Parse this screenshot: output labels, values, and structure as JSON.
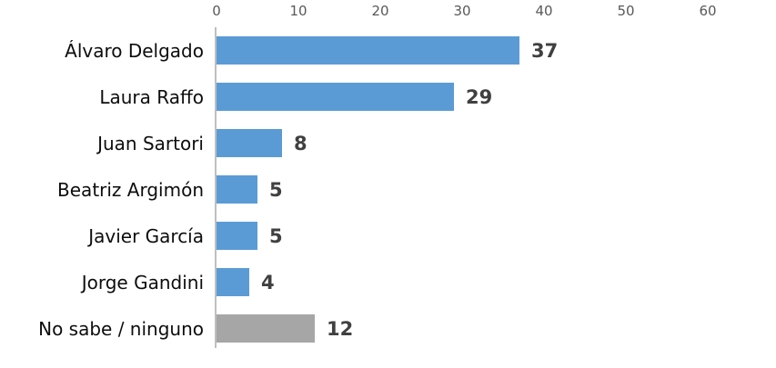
{
  "chart_data": {
    "type": "bar",
    "orientation": "horizontal",
    "title": "",
    "xlabel": "",
    "ylabel": "",
    "categories": [
      "Álvaro Delgado",
      "Laura Raffo",
      "Juan Sartori",
      "Beatriz Argimón",
      "Javier García",
      "Jorge Gandini",
      "No sabe / ninguno"
    ],
    "values": [
      37,
      29,
      8,
      5,
      5,
      4,
      12
    ],
    "bar_colors": [
      "#5b9bd5",
      "#5b9bd5",
      "#5b9bd5",
      "#5b9bd5",
      "#5b9bd5",
      "#5b9bd5",
      "#a6a6a6"
    ],
    "x_ticks": [
      0,
      10,
      20,
      30,
      40,
      50,
      60
    ],
    "xlim": [
      0,
      60
    ],
    "grid": false,
    "legend": false,
    "data_labels": true,
    "colors": {
      "bar_blue": "#5b9bd5",
      "bar_gray": "#a6a6a6",
      "value_label": "#404040",
      "tick_label": "#595959",
      "axis_line": "#bfbfbf",
      "category_label": "#0d0d0d",
      "background": "#ffffff"
    }
  }
}
